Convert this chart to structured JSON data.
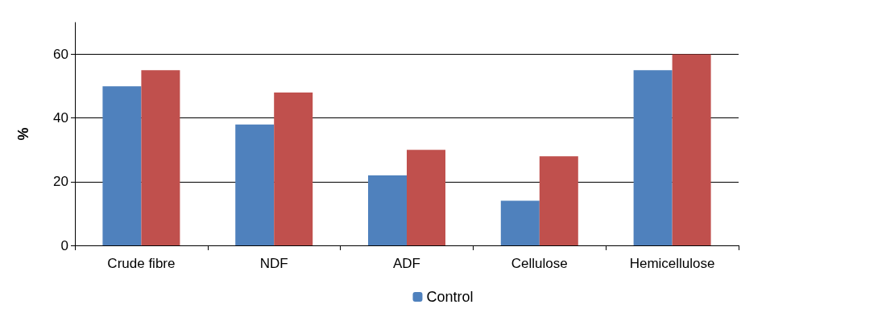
{
  "chart_data": {
    "type": "bar",
    "ylabel": "%",
    "categories": [
      "Crude fibre",
      "NDF",
      "ADF",
      "Cellulose",
      "Hemicellulose"
    ],
    "series": [
      {
        "name": "Control",
        "color": "#4f81bd",
        "values": [
          50,
          38,
          22,
          14,
          55
        ]
      },
      {
        "color": "#c0504d",
        "values": [
          55,
          48,
          30,
          28,
          60
        ]
      }
    ],
    "ylim": [
      0,
      70
    ],
    "yticks": [
      0,
      20,
      40,
      60
    ],
    "grid": "y",
    "legend": "bottom"
  }
}
